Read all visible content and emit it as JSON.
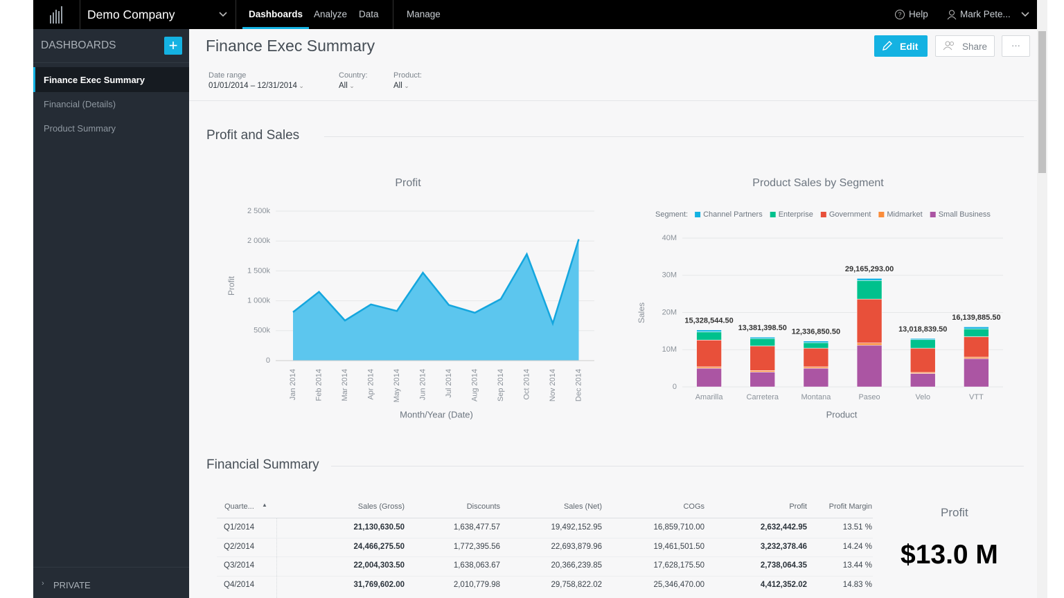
{
  "top_nav": {
    "company": "Demo Company",
    "tabs": [
      "Dashboards",
      "Analyze",
      "Data",
      "Manage"
    ],
    "help": "Help",
    "user": "Mark Pete..."
  },
  "sidebar": {
    "title": "DASHBOARDS",
    "items": [
      "Finance Exec Summary",
      "Financial (Details)",
      "Product Summary"
    ],
    "private": "PRIVATE"
  },
  "header": {
    "title": "Finance Exec Summary",
    "edit": "Edit",
    "share": "Share"
  },
  "filters": [
    {
      "label": "Date range",
      "value": "01/01/2014 – 12/31/2014"
    },
    {
      "label": "Country:",
      "value": "All"
    },
    {
      "label": "Product:",
      "value": "All"
    }
  ],
  "sections": [
    "Profit and Sales",
    "Financial Summary"
  ],
  "chart_data": [
    {
      "type": "area",
      "title": "Profit",
      "xlabel": "Month/Year (Date)",
      "ylabel": "Profit",
      "color": "#14a6de",
      "fill": "#5cc6ee",
      "categories": [
        "Jan 2014",
        "Feb 2014",
        "Mar 2014",
        "Apr 2014",
        "May 2014",
        "Jun 2014",
        "Jul 2014",
        "Aug 2014",
        "Sep 2014",
        "Oct 2014",
        "Nov 2014",
        "Dec 2014"
      ],
      "values": [
        810000,
        1150000,
        670000,
        940000,
        830000,
        1470000,
        930000,
        800000,
        1030000,
        1780000,
        620000,
        2030000
      ],
      "ylim": [
        0,
        2500000
      ],
      "yticks": [
        0,
        {
          "value": 500000,
          "label": "500k"
        },
        {
          "value": 1000000,
          "label": "1 000k"
        },
        {
          "value": 1500000,
          "label": "1 500k"
        },
        {
          "value": 2000000,
          "label": "2 000k"
        },
        {
          "value": 2500000,
          "label": "2 500k"
        }
      ],
      "grid": true
    },
    {
      "type": "stacked_bar",
      "title": "Product Sales by Segment",
      "xlabel": "Product",
      "ylabel": "Sales",
      "legend_title": "Segment:",
      "categories": [
        "Amarilla",
        "Carretera",
        "Montana",
        "Paseo",
        "Velo",
        "VTT"
      ],
      "series": [
        {
          "name": "Small Business",
          "color": "#ab55a3",
          "values": [
            5000000,
            4000000,
            5000000,
            11200000,
            3600000,
            7600000
          ]
        },
        {
          "name": "Midmarket",
          "color": "#fa8c3a",
          "values": [
            400000,
            400000,
            400000,
            600000,
            300000,
            400000
          ]
        },
        {
          "name": "Government",
          "color": "#e8503a",
          "values": [
            7200000,
            6600000,
            5000000,
            11800000,
            6500000,
            5500000
          ]
        },
        {
          "name": "Enterprise",
          "color": "#00c18d",
          "values": [
            2200000,
            2000000,
            1500000,
            5000000,
            2300000,
            2100000
          ]
        },
        {
          "name": "Channel Partners",
          "color": "#14b2e2",
          "values": [
            530000,
            380000,
            440000,
            570000,
            320000,
            540000
          ]
        }
      ],
      "legend_order": [
        "Channel Partners",
        "Enterprise",
        "Government",
        "Midmarket",
        "Small Business"
      ],
      "totals": [
        15328544.5,
        13381398.5,
        12336850.5,
        29165293,
        13018839.5,
        16139885.5
      ],
      "value_labels": [
        "15,328,544.50",
        "13,381,398.50",
        "12,336,850.50",
        "29,165,293.00",
        "13,018,839.50",
        "16,139,885.50"
      ],
      "ylim": [
        0,
        40000000
      ],
      "yticks": [
        0,
        {
          "value": 10000000,
          "label": "10M"
        },
        {
          "value": 20000000,
          "label": "20M"
        },
        {
          "value": 30000000,
          "label": "30M"
        },
        {
          "value": 40000000,
          "label": "40M"
        }
      ],
      "grid": true
    }
  ],
  "table": {
    "columns": [
      "Quarte...",
      "Sales (Gross)",
      "Discounts",
      "Sales (Net)",
      "COGs",
      "Profit",
      "Profit Margin"
    ],
    "rows": [
      [
        "Q1/2014",
        "21,130,630.50",
        "1,638,477.57",
        "19,492,152.95",
        "16,859,710.00",
        "2,632,442.95",
        "13.51 %"
      ],
      [
        "Q2/2014",
        "24,466,275.50",
        "1,772,395.56",
        "22,693,879.96",
        "19,461,501.50",
        "3,232,378.46",
        "14.24 %"
      ],
      [
        "Q3/2014",
        "22,004,303.50",
        "1,638,063.67",
        "20,366,239.85",
        "17,628,175.50",
        "2,738,064.35",
        "13.44 %"
      ],
      [
        "Q4/2014",
        "31,769,602.00",
        "2,010,779.98",
        "29,758,822.02",
        "25,346,470.00",
        "4,412,352.02",
        "14.83 %"
      ]
    ]
  },
  "kpi": {
    "title": "Profit",
    "value": "$13.0 M"
  }
}
